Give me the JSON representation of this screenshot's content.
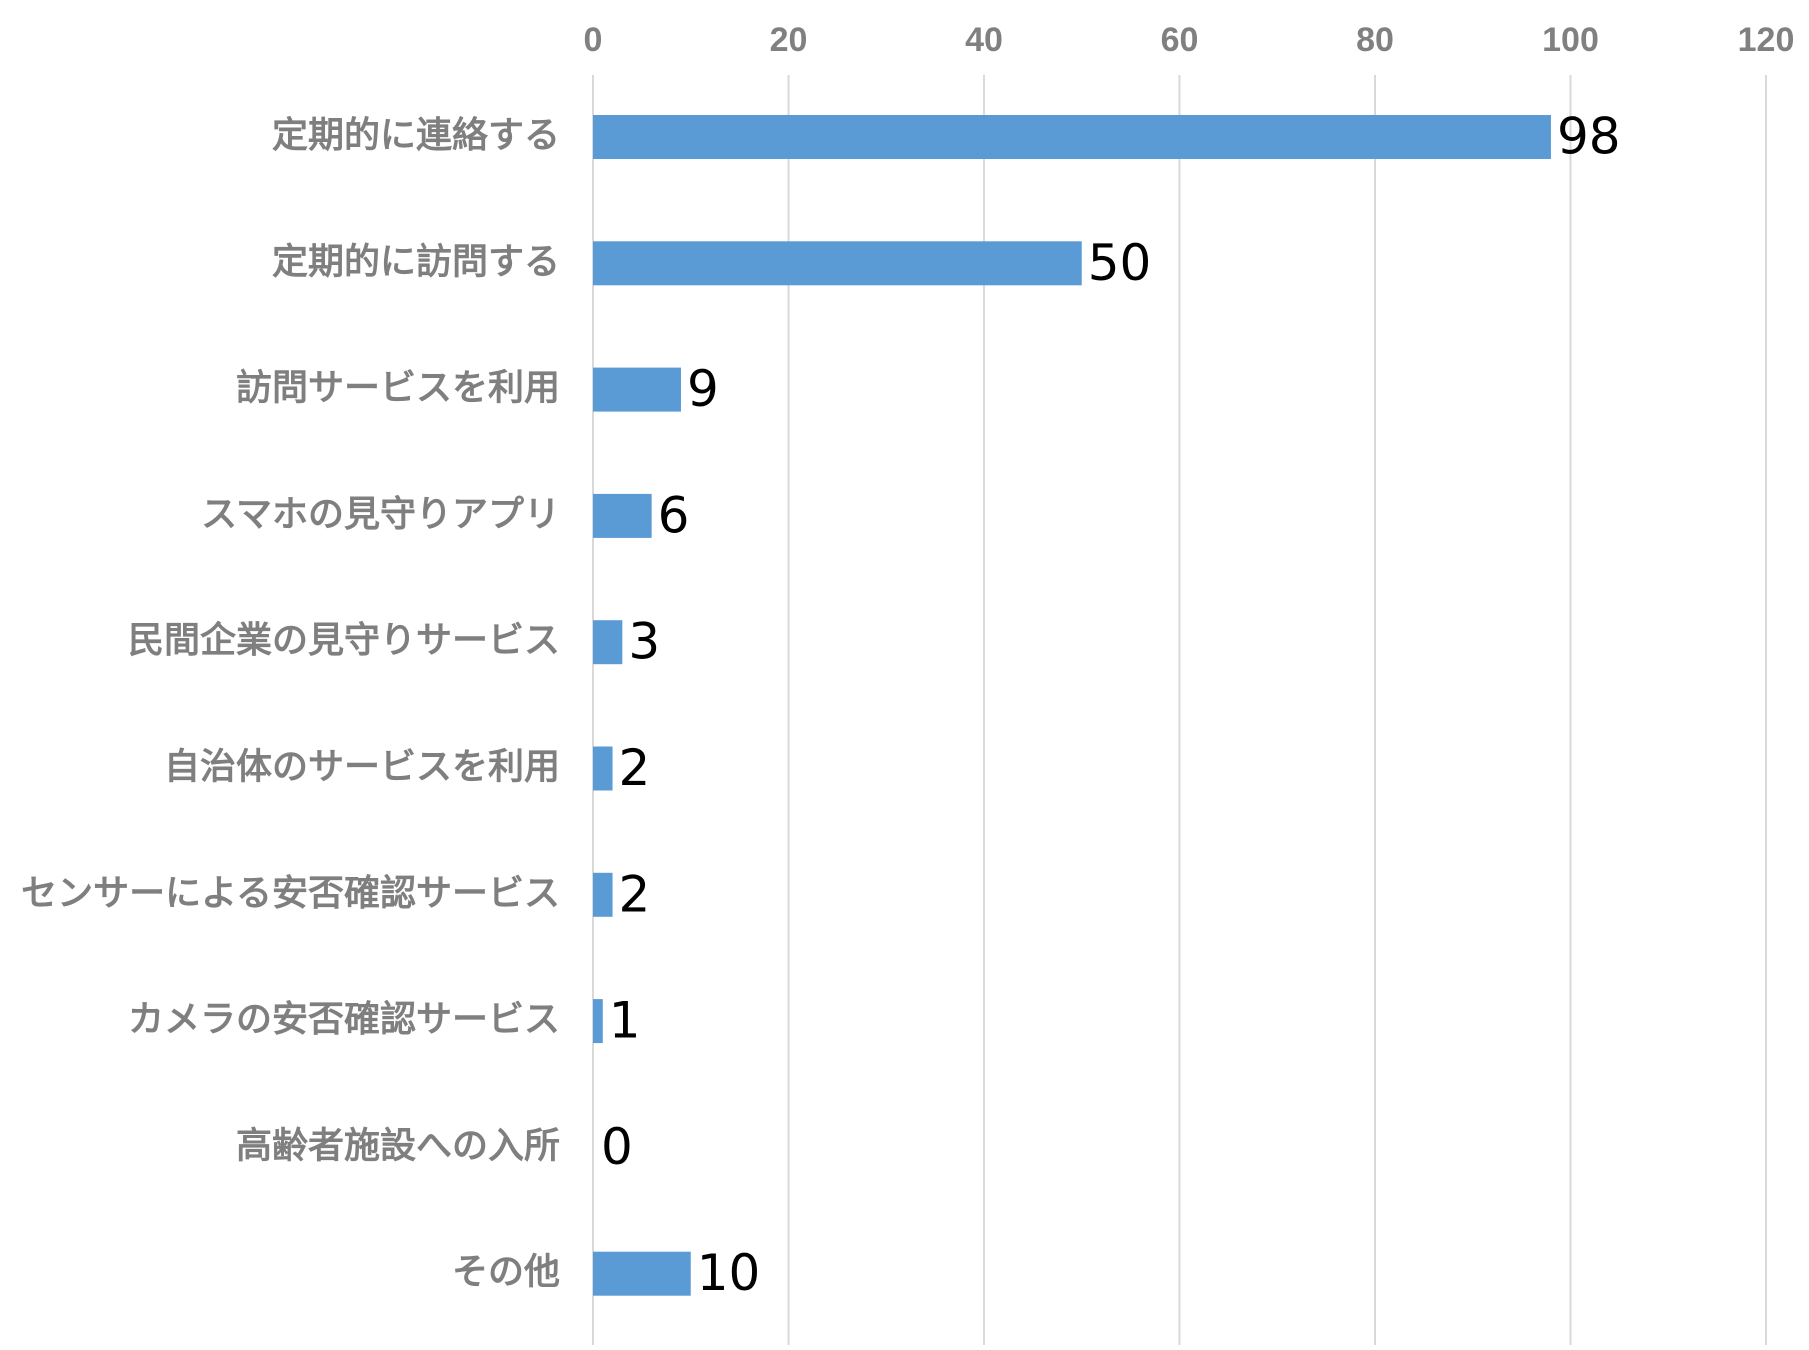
{
  "chart_data": {
    "type": "bar",
    "orientation": "horizontal",
    "categories": [
      "定期的に連絡する",
      "定期的に訪問する",
      "訪問サービスを利用",
      "スマホの見守りアプリ",
      "民間企業の見守りサービス",
      "自治体のサービスを利用",
      "センサーによる安否確認サービス",
      "カメラの安否確認サービス",
      "高齢者施設への入所",
      "その他"
    ],
    "values": [
      98,
      50,
      9,
      6,
      3,
      2,
      2,
      1,
      0,
      10
    ],
    "xlim": [
      0,
      120
    ],
    "xticks": [
      "0",
      "20",
      "40",
      "60",
      "80",
      "100",
      "120"
    ],
    "x_axis_position": "top",
    "grid": true,
    "legend": "none",
    "data_labels": true,
    "title": "",
    "xlabel": "",
    "ylabel": "",
    "colors": {
      "bar": "#5b9bd5",
      "grid": "#d9d9d9",
      "tick_text": "#808080",
      "category_text": "#7f7f7f",
      "data_label_text": "#000000"
    }
  }
}
